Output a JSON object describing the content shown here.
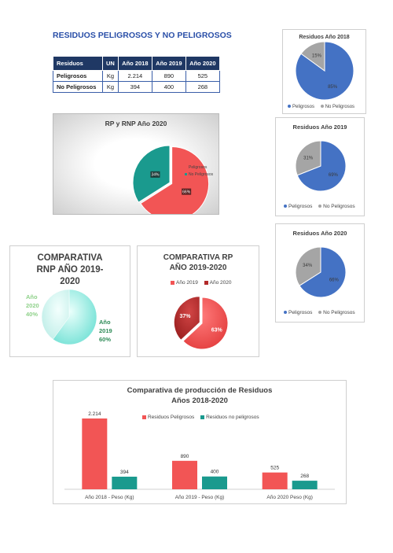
{
  "page_title": "RESIDUOS PELIGROSOS Y NO PELIGROSOS",
  "table": {
    "headers": [
      "Residuos",
      "UN",
      "Año 2018",
      "Año 2019",
      "Año 2020"
    ],
    "rows": [
      [
        "Peligrosos",
        "Kg",
        "2.214",
        "890",
        "525"
      ],
      [
        "No Peligrosos",
        "Kg",
        "394",
        "400",
        "268"
      ]
    ]
  },
  "colors": {
    "blue": "#4472c4",
    "gray": "#a5a5a5",
    "red": "#f25555",
    "teal": "#1a9a8e",
    "dark_red": "#b22a2a",
    "light_green": "#8fd18a",
    "mint": "#7fe6dc"
  },
  "chart_data": [
    {
      "id": "rp-rnp-2020",
      "type": "pie",
      "title": "RP y RNP Año 2020",
      "categories": [
        "Peligrosos",
        "No Peligrosos"
      ],
      "values": [
        66,
        34
      ],
      "labels": [
        "66%",
        "34%"
      ],
      "legend": "right"
    },
    {
      "id": "residuos-2018",
      "type": "pie",
      "title": "Residuos Año 2018",
      "categories": [
        "Peligrosos",
        "No Peligrosos"
      ],
      "values": [
        85,
        15
      ],
      "labels": [
        "85%",
        "15%"
      ],
      "legend": "bottom"
    },
    {
      "id": "residuos-2019",
      "type": "pie",
      "title": "Residuos Año 2019",
      "categories": [
        "Peligrosos",
        "No Peligrosos"
      ],
      "values": [
        69,
        31
      ],
      "labels": [
        "69%",
        "31%"
      ],
      "legend": "bottom"
    },
    {
      "id": "residuos-2020",
      "type": "pie",
      "title": "Residuos Año 2020",
      "categories": [
        "Peligrosos",
        "No Peligrosos"
      ],
      "values": [
        66,
        34
      ],
      "labels": [
        "66%",
        "34%"
      ],
      "legend": "bottom"
    },
    {
      "id": "comparativa-rnp",
      "type": "pie",
      "title": "COMPARATIVA RNP AÑO 2019-2020",
      "categories": [
        "Año 2019",
        "Año 2020"
      ],
      "values": [
        60,
        40
      ],
      "labels": [
        "Año 2019 60%",
        "Año 2020 40%"
      ]
    },
    {
      "id": "comparativa-rp",
      "type": "pie",
      "title": "COMPARATIVA RP AÑO 2019-2020",
      "categories": [
        "Año 2019",
        "Año 2020"
      ],
      "values": [
        63,
        37
      ],
      "labels": [
        "63%",
        "37%"
      ],
      "legend": "top"
    },
    {
      "id": "produccion",
      "type": "bar",
      "title": "Comparativa de producción de Residuos",
      "subtitle": "Años 2018-2020",
      "categories": [
        "Año 2018 - Peso (Kg)",
        "Año 2019 - Peso (Kg)",
        "Año 2020 Peso (Kg)"
      ],
      "series": [
        {
          "name": "Residuos Peligrosos",
          "values": [
            2214,
            890,
            525
          ],
          "labels": [
            "2.214",
            "890",
            "525"
          ]
        },
        {
          "name": "Residuos no peligrosos",
          "values": [
            394,
            400,
            268
          ],
          "labels": [
            "394",
            "400",
            "268"
          ]
        }
      ],
      "ylim": [
        0,
        2214
      ],
      "legend": "top"
    }
  ]
}
